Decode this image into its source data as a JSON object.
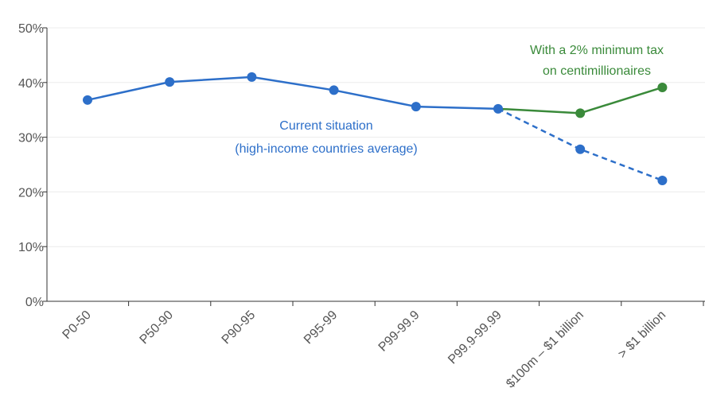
{
  "chart_data": {
    "type": "line",
    "categories": [
      "P0-50",
      "P50-90",
      "P90-95",
      "P95-99",
      "P99-99.9",
      "P99.9-99.99",
      "$100m – $1 billion",
      "> $1 billion"
    ],
    "ylim": [
      0,
      50
    ],
    "yticks": [
      "0%",
      "10%",
      "20%",
      "30%",
      "40%",
      "50%"
    ],
    "ytick_values": [
      0,
      10,
      20,
      30,
      40,
      50
    ],
    "grid": true,
    "series": [
      {
        "values": [
          36.8,
          40.1,
          41.0,
          38.6,
          35.6,
          35.2,
          27.8,
          22.1
        ],
        "color": "#2d6fc9",
        "dashed_from_index": 5
      },
      {
        "values": [
          null,
          null,
          null,
          null,
          null,
          35.2,
          34.4,
          39.1
        ],
        "color": "#3a8a3a",
        "marker_from_index": 6
      }
    ],
    "annotations": [
      {
        "lines": [
          "Current situation",
          "(high-income countries average)"
        ],
        "color": "#2d6fc9"
      },
      {
        "lines": [
          "With a 2% minimum tax",
          "on centimillionaires"
        ],
        "color": "#3a8a3a"
      }
    ]
  }
}
